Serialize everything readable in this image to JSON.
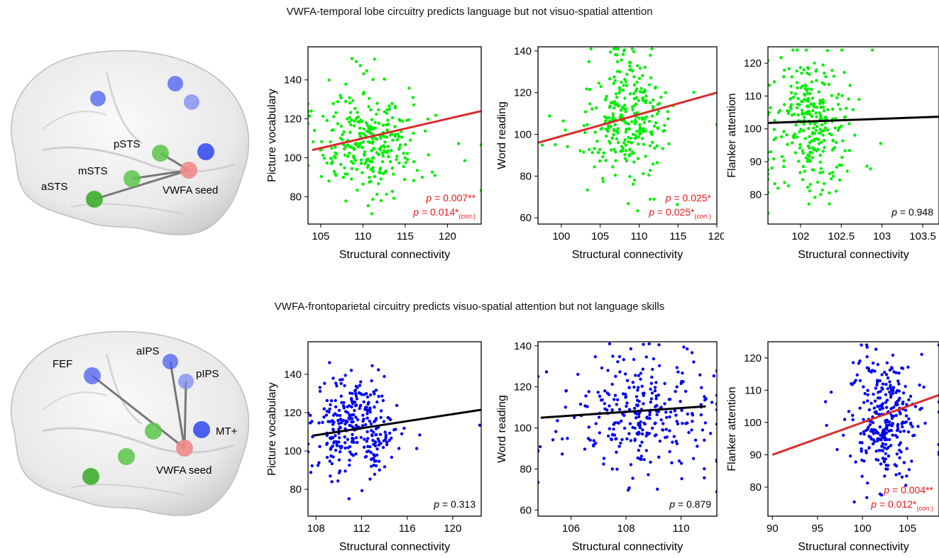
{
  "rows": [
    {
      "title": "VWFA-temporal lobe circuitry predicts language but not visuo-spatial attention",
      "brain": {
        "labels": {
          "pstsLabel": "pSTS",
          "mstsLabel": "mSTS",
          "astsLabel": "aSTS",
          "seedLabel": "VWFA seed"
        }
      }
    },
    {
      "title": "VWFA-frontoparietal circuitry predicts visuo-spatial attention but not language skills",
      "brain": {
        "labels": {
          "fefLabel": "FEF",
          "aipsLabel": "aIPS",
          "pipsLabel": "pIPS",
          "mtLabel": "MT+",
          "seedLabel": "VWFA seed"
        }
      }
    }
  ],
  "colors": {
    "green_points": "#00ee00",
    "blue_points": "#0000ee",
    "significant_line": "#d92b2b",
    "nonsignificant_line": "#000000",
    "significant_text": "#e8161b",
    "seed": "#f08a8a",
    "temporal_roi": "#5cc64a",
    "frontoparietal_roi": "#4a5ef0"
  },
  "chart_data": [
    {
      "type": "scatter",
      "xlabel": "Structural connectivity",
      "ylabel": "Picture vocabulary",
      "xlim": [
        103.5,
        124
      ],
      "ylim": [
        66,
        157
      ],
      "xticks": [
        105,
        110,
        115,
        120
      ],
      "yticks": [
        80,
        100,
        120,
        140
      ],
      "point_color": "green",
      "n_points": 300,
      "x_center": 111,
      "x_spread": 2.8,
      "y_center": 110,
      "y_spread": 14,
      "seed": 11,
      "fit": {
        "x": [
          104,
          124
        ],
        "y": [
          104,
          124
        ],
        "significant": true
      },
      "p_text": [
        "p = 0.007**",
        "p = 0.014*(corr.)"
      ]
    },
    {
      "type": "scatter",
      "xlabel": "Structural connectivity",
      "ylabel": "Word reading",
      "xlim": [
        97,
        120
      ],
      "ylim": [
        57,
        142
      ],
      "xticks": [
        100,
        105,
        110,
        115,
        120
      ],
      "yticks": [
        60,
        80,
        100,
        120,
        140
      ],
      "point_color": "green",
      "n_points": 300,
      "x_center": 108.5,
      "x_spread": 2.2,
      "y_center": 107,
      "y_spread": 15,
      "seed": 23,
      "fit": {
        "x": [
          97,
          120
        ],
        "y": [
          96,
          120
        ],
        "significant": true
      },
      "p_text": [
        "p = 0.025*",
        "p = 0.025*(corr.)"
      ]
    },
    {
      "type": "scatter",
      "xlabel": "Structural connectivity",
      "ylabel": "Flanker attention",
      "xlim": [
        101.6,
        103.7
      ],
      "ylim": [
        71,
        125
      ],
      "xticks": [
        102,
        102.5,
        103,
        103.5
      ],
      "yticks": [
        80,
        90,
        100,
        110,
        120
      ],
      "point_color": "green",
      "n_points": 300,
      "x_center": 102.15,
      "x_spread": 0.22,
      "y_center": 101,
      "y_spread": 10,
      "seed": 37,
      "fit": {
        "x": [
          101.6,
          103.7
        ],
        "y": [
          101.8,
          103.7
        ],
        "significant": false
      },
      "p_text": [
        "p = 0.948"
      ]
    },
    {
      "type": "scatter",
      "xlabel": "Structural connectivity",
      "ylabel": "Picture vocabulary",
      "xlim": [
        107.3,
        122.5
      ],
      "ylim": [
        66,
        157
      ],
      "xticks": [
        108,
        112,
        116,
        120
      ],
      "yticks": [
        80,
        100,
        120,
        140
      ],
      "point_color": "blue",
      "n_points": 300,
      "x_center": 111.5,
      "x_spread": 1.8,
      "y_center": 112,
      "y_spread": 14,
      "seed": 53,
      "fit": {
        "x": [
          107.7,
          122.5
        ],
        "y": [
          108,
          121.5
        ],
        "significant": false
      },
      "p_text": [
        "p = 0.313"
      ]
    },
    {
      "type": "scatter",
      "xlabel": "Structural connectivity",
      "ylabel": "Word reading",
      "xlim": [
        104.8,
        111.3
      ],
      "ylim": [
        57,
        142
      ],
      "xticks": [
        106,
        108,
        110
      ],
      "yticks": [
        60,
        80,
        100,
        120,
        140
      ],
      "point_color": "blue",
      "n_points": 300,
      "x_center": 108.6,
      "x_spread": 1.1,
      "y_center": 107,
      "y_spread": 15,
      "seed": 71,
      "fit": {
        "x": [
          104.9,
          110.9
        ],
        "y": [
          105,
          110.5
        ],
        "significant": false
      },
      "p_text": [
        "p = 0.879"
      ]
    },
    {
      "type": "scatter",
      "xlabel": "Structural connectivity",
      "ylabel": "Flanker attention",
      "xlim": [
        89.5,
        108.5
      ],
      "ylim": [
        71,
        125
      ],
      "xticks": [
        90,
        95,
        100,
        105
      ],
      "yticks": [
        80,
        90,
        100,
        110,
        120
      ],
      "point_color": "blue",
      "n_points": 300,
      "x_center": 102.5,
      "x_spread": 1.8,
      "y_center": 101,
      "y_spread": 10,
      "seed": 97,
      "fit": {
        "x": [
          90,
          108.5
        ],
        "y": [
          90,
          108.5
        ],
        "significant": true
      },
      "p_text": [
        "p = 0.004**",
        "p = 0.012*(corr.)"
      ]
    }
  ]
}
